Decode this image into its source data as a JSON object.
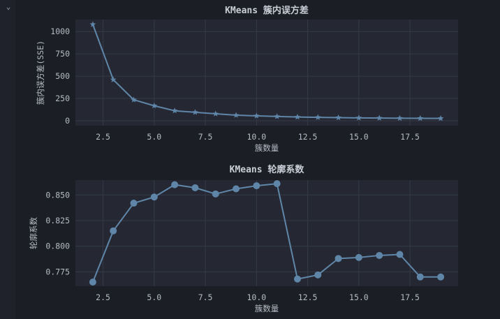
{
  "colors": {
    "figure_bg": "#1b1e25",
    "axes_bg": "#252833",
    "grid": "#353a47",
    "series": "#5f86a8",
    "text": "#b6bcc6"
  },
  "ui": {
    "collapse_icon": "chevron-down-icon"
  },
  "chart_data": [
    {
      "type": "line",
      "title": "KMeans 簇内误方差",
      "xlabel": "簇数量",
      "ylabel": "簇内误方差(SSE)",
      "marker": "star",
      "grid": true,
      "xlim": [
        1.15,
        19.85
      ],
      "ylim": [
        -55,
        1135
      ],
      "xticks": [
        2.5,
        5.0,
        7.5,
        10.0,
        12.5,
        15.0,
        17.5
      ],
      "xtick_labels": [
        "2.5",
        "5.0",
        "7.5",
        "10.0",
        "12.5",
        "15.0",
        "17.5"
      ],
      "yticks": [
        0,
        250,
        500,
        750,
        1000
      ],
      "ytick_labels": [
        "0",
        "250",
        "500",
        "750",
        "1000"
      ],
      "x": [
        2,
        3,
        4,
        5,
        6,
        7,
        8,
        9,
        10,
        11,
        12,
        13,
        14,
        15,
        16,
        17,
        18,
        19
      ],
      "y": [
        1080,
        460,
        235,
        168,
        112,
        95,
        78,
        62,
        55,
        48,
        42,
        38,
        35,
        32,
        30,
        28,
        27,
        26
      ]
    },
    {
      "type": "line",
      "title": "KMeans 轮廓系数",
      "xlabel": "簇数量",
      "ylabel": "轮廓系数",
      "marker": "circle",
      "grid": true,
      "xlim": [
        1.15,
        19.85
      ],
      "ylim": [
        0.761,
        0.8645
      ],
      "xticks": [
        2.5,
        5.0,
        7.5,
        10.0,
        12.5,
        15.0,
        17.5
      ],
      "xtick_labels": [
        "2.5",
        "5.0",
        "7.5",
        "10.0",
        "12.5",
        "15.0",
        "17.5"
      ],
      "yticks": [
        0.775,
        0.8,
        0.825,
        0.85
      ],
      "ytick_labels": [
        "0.775",
        "0.800",
        "0.825",
        "0.850"
      ],
      "x": [
        2,
        3,
        4,
        5,
        6,
        7,
        8,
        9,
        10,
        11,
        12,
        13,
        14,
        15,
        16,
        17,
        18,
        19
      ],
      "y": [
        0.765,
        0.815,
        0.842,
        0.848,
        0.86,
        0.857,
        0.851,
        0.856,
        0.859,
        0.861,
        0.768,
        0.772,
        0.788,
        0.789,
        0.791,
        0.792,
        0.77,
        0.77
      ]
    }
  ]
}
